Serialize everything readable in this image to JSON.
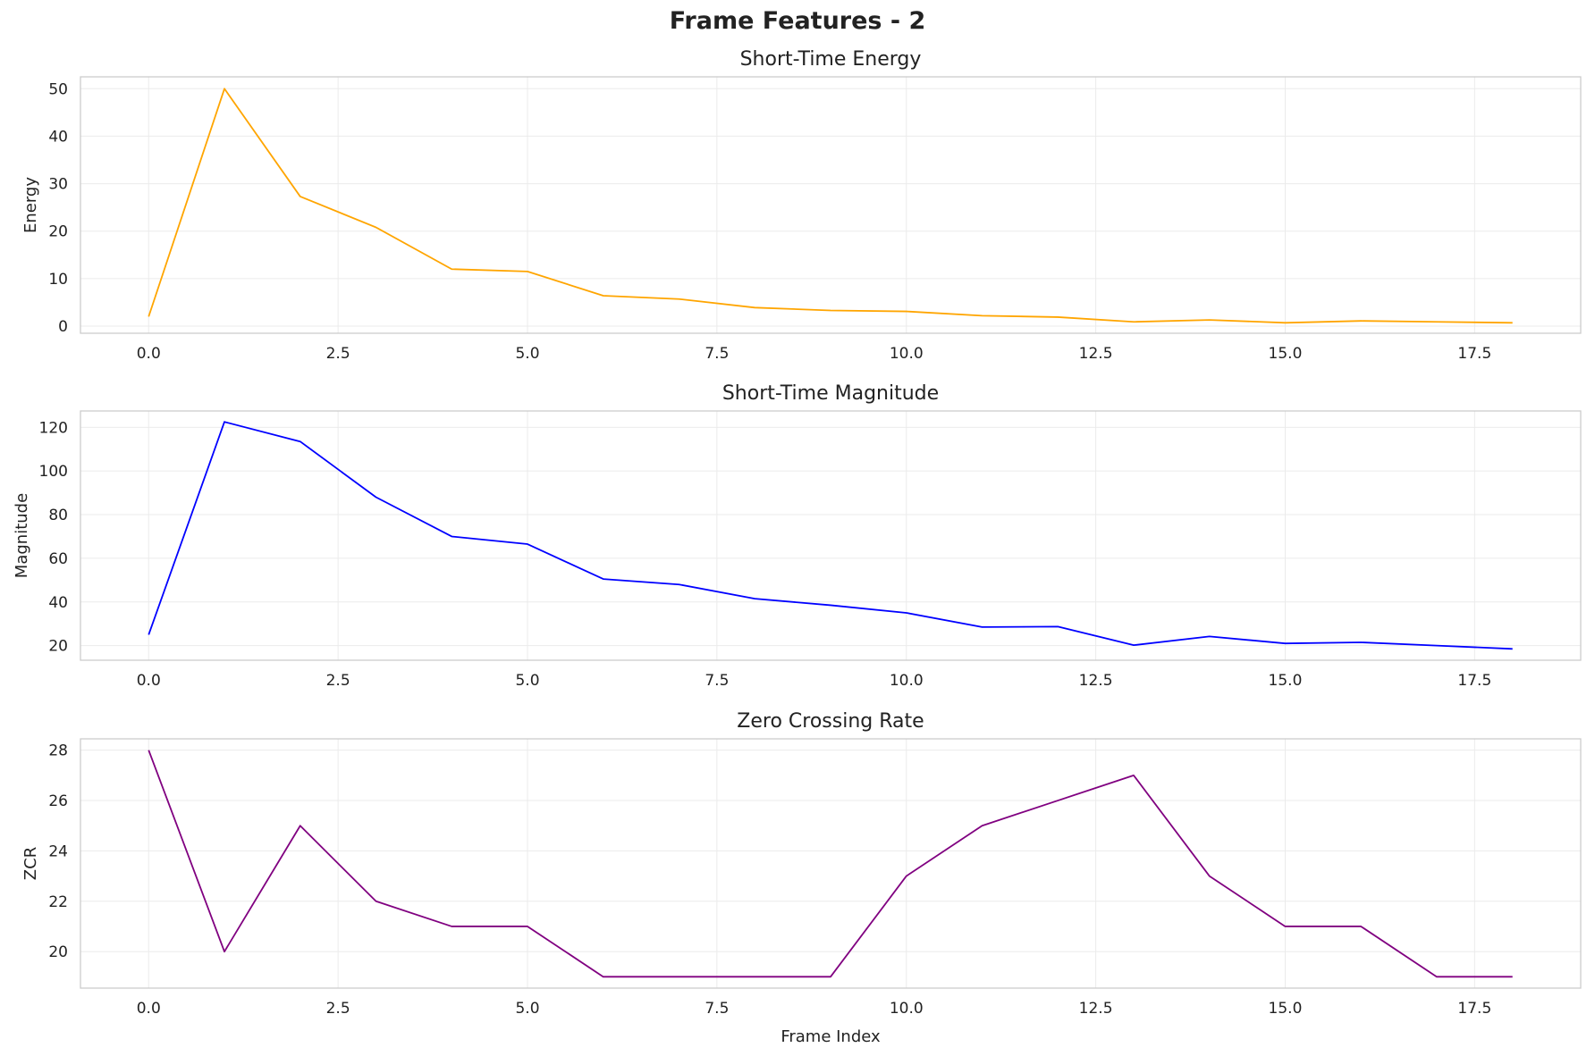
{
  "figure": {
    "title": "Frame Features - 2"
  },
  "chart_data": [
    {
      "type": "line",
      "title": "Short-Time Energy",
      "xlabel": "",
      "ylabel": "Energy",
      "x": [
        0,
        1,
        2,
        3,
        4,
        5,
        6,
        7,
        8,
        9,
        10,
        11,
        12,
        13,
        14,
        15,
        16,
        17,
        18
      ],
      "series": [
        {
          "color": "#ffa500",
          "values": [
            2.0,
            50.0,
            27.3,
            20.8,
            12.0,
            11.5,
            6.4,
            5.7,
            3.9,
            3.3,
            3.1,
            2.2,
            1.9,
            0.9,
            1.3,
            0.7,
            1.1,
            0.9,
            0.7
          ]
        }
      ],
      "xlim": [
        -0.9,
        18.9
      ],
      "ylim": [
        -1.5,
        52.5
      ],
      "xticks": [
        0,
        2.5,
        5,
        7.5,
        10,
        12.5,
        15,
        17.5
      ],
      "xtick_labels": [
        "0.0",
        "2.5",
        "5.0",
        "7.5",
        "10.0",
        "12.5",
        "15.0",
        "17.5"
      ],
      "yticks": [
        0,
        10,
        20,
        30,
        40,
        50
      ],
      "ytick_labels": [
        "0",
        "10",
        "20",
        "30",
        "40",
        "50"
      ],
      "grid": true
    },
    {
      "type": "line",
      "title": "Short-Time Magnitude",
      "xlabel": "",
      "ylabel": "Magnitude",
      "x": [
        0,
        1,
        2,
        3,
        4,
        5,
        6,
        7,
        8,
        9,
        10,
        11,
        12,
        13,
        14,
        15,
        16,
        17,
        18
      ],
      "series": [
        {
          "color": "#0000ff",
          "values": [
            25,
            122.5,
            113.5,
            88,
            70,
            66.5,
            50.5,
            48,
            41.5,
            38.5,
            35,
            28.5,
            28.7,
            20.2,
            24.2,
            21,
            21.5,
            20,
            18.5
          ]
        }
      ],
      "xlim": [
        -0.9,
        18.9
      ],
      "ylim": [
        13.3,
        127.5
      ],
      "xticks": [
        0,
        2.5,
        5,
        7.5,
        10,
        12.5,
        15,
        17.5
      ],
      "xtick_labels": [
        "0.0",
        "2.5",
        "5.0",
        "7.5",
        "10.0",
        "12.5",
        "15.0",
        "17.5"
      ],
      "yticks": [
        20,
        40,
        60,
        80,
        100,
        120
      ],
      "ytick_labels": [
        "20",
        "40",
        "60",
        "80",
        "100",
        "120"
      ],
      "grid": true
    },
    {
      "type": "line",
      "title": "Zero Crossing Rate",
      "xlabel": "Frame Index",
      "ylabel": "ZCR",
      "x": [
        0,
        1,
        2,
        3,
        4,
        5,
        6,
        7,
        8,
        9,
        10,
        11,
        12,
        13,
        14,
        15,
        16,
        17,
        18
      ],
      "series": [
        {
          "color": "#800080",
          "values": [
            28,
            20,
            25,
            22,
            21,
            21,
            19,
            19,
            19,
            19,
            23,
            25,
            26,
            27,
            23,
            21,
            21,
            19,
            19
          ]
        }
      ],
      "xlim": [
        -0.9,
        18.9
      ],
      "ylim": [
        18.55,
        28.45
      ],
      "xticks": [
        0,
        2.5,
        5,
        7.5,
        10,
        12.5,
        15,
        17.5
      ],
      "xtick_labels": [
        "0.0",
        "2.5",
        "5.0",
        "7.5",
        "10.0",
        "12.5",
        "15.0",
        "17.5"
      ],
      "yticks": [
        20,
        22,
        24,
        26,
        28
      ],
      "ytick_labels": [
        "20",
        "22",
        "24",
        "26",
        "28"
      ],
      "grid": true
    }
  ]
}
